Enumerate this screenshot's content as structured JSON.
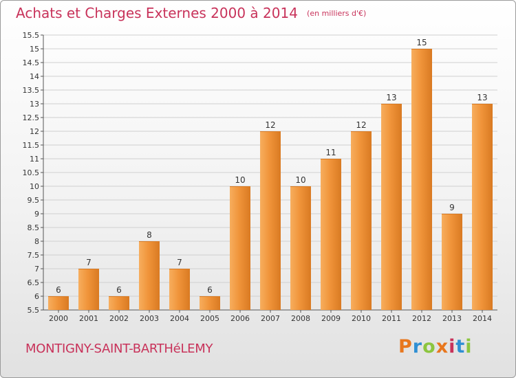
{
  "header": {
    "title": "Achats et Charges Externes 2000 à 2014",
    "unit": "(en milliers d'€)"
  },
  "footer": {
    "commune": "MONTIGNY-SAINT-BARTHéLEMY",
    "brand": "Proxiti",
    "brand_colors": [
      "#e8771e",
      "#2f8fd3",
      "#8cc53f",
      "#e8771e",
      "#c8325a",
      "#2f8fd3",
      "#8cc53f"
    ]
  },
  "colors": {
    "title": "#c8325a",
    "bar": "#f0943a",
    "bar_light": "#f7ae5e",
    "bar_dark": "#d97a22",
    "grid": "#cfcfcf",
    "text": "#333333"
  },
  "chart_data": {
    "type": "bar",
    "title": "Achats et Charges Externes 2000 à 2014",
    "subtitle": "(en milliers d'€)",
    "xlabel": "",
    "ylabel": "",
    "categories": [
      "2000",
      "2001",
      "2002",
      "2003",
      "2004",
      "2005",
      "2006",
      "2007",
      "2008",
      "2009",
      "2010",
      "2011",
      "2012",
      "2013",
      "2014"
    ],
    "values": [
      6,
      7,
      6,
      8,
      7,
      6,
      10,
      12,
      10,
      11,
      12,
      13,
      15,
      9,
      13
    ],
    "ylim": [
      5.5,
      15.5
    ],
    "yticks": [
      "5.5",
      "6",
      "6.5",
      "7",
      "7.5",
      "8",
      "8.5",
      "9",
      "9.5",
      "10",
      "10.5",
      "11",
      "11.5",
      "12",
      "12.5",
      "13",
      "13.5",
      "14",
      "14.5",
      "15",
      "15.5"
    ],
    "grid": true,
    "legend": "none"
  }
}
